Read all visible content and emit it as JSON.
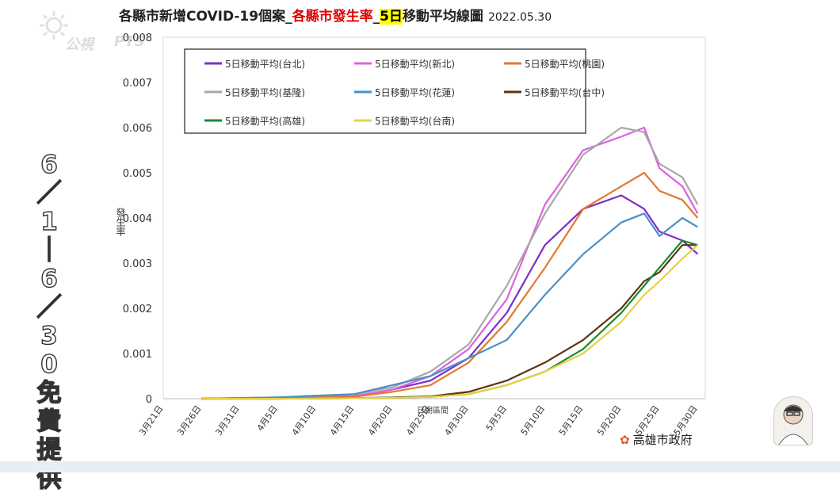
{
  "title": {
    "part1": "各縣市新增COVID-19個案_",
    "part2": "各縣市發生率",
    "part3": "_",
    "part4": "5日",
    "part5": "移動平均線圖",
    "date": "2022.05.30"
  },
  "side_caption": [
    "6",
    "／",
    "1",
    "｜",
    "6",
    "／",
    "3",
    "0",
    "免",
    "費",
    "提",
    "供"
  ],
  "watermark": {
    "brand": "公視",
    "channel": "PTS"
  },
  "source_label": "高雄市政府",
  "colors": {
    "台北": "#7a2fc7",
    "新北": "#e060e0",
    "桃園": "#e07a30",
    "基隆": "#a8a8a8",
    "花蓮": "#4a90c8",
    "台中": "#5c3510",
    "高雄": "#1a8a2a",
    "台南": "#e8d040"
  },
  "chart_data": {
    "type": "line",
    "title": "各縣市新增COVID-19個案_各縣市發生率_5日移動平均線圖 2022.05.30",
    "xlabel": "日期區間",
    "ylabel": "發生率",
    "ylim": [
      0,
      0.008
    ],
    "yticks": [
      "0",
      "0.001",
      "0.002",
      "0.003",
      "0.004",
      "0.005",
      "0.006",
      "0.007",
      "0.008"
    ],
    "xticks": [
      "3月21日",
      "3月26日",
      "3月31日",
      "4月5日",
      "4月10日",
      "4月15日",
      "4月20日",
      "4月25日",
      "4月30日",
      "5月5日",
      "5月10日",
      "5月15日",
      "5月20日",
      "5月25日",
      "5月30日"
    ],
    "x": [
      "3/26",
      "4/5",
      "4/15",
      "4/20",
      "4/25",
      "4/30",
      "5/5",
      "5/10",
      "5/15",
      "5/20",
      "5/23",
      "5/25",
      "5/28",
      "5/30"
    ],
    "legend_position": "top",
    "grid": false,
    "series": [
      {
        "name": "5日移動平均(台北)",
        "key": "台北",
        "values": [
          0,
          2e-05,
          5e-05,
          0.0002,
          0.0004,
          0.0009,
          0.0019,
          0.0034,
          0.0042,
          0.0045,
          0.0042,
          0.0037,
          0.0035,
          0.0032
        ]
      },
      {
        "name": "5日移動平均(新北)",
        "key": "新北",
        "values": [
          0,
          2e-05,
          6e-05,
          0.0002,
          0.0005,
          0.0011,
          0.0022,
          0.0043,
          0.0055,
          0.0058,
          0.006,
          0.0051,
          0.0047,
          0.0041
        ]
      },
      {
        "name": "5日移動平均(桃園)",
        "key": "桃園",
        "values": [
          0,
          2e-05,
          4e-05,
          0.00015,
          0.0003,
          0.0008,
          0.0017,
          0.0029,
          0.0042,
          0.0047,
          0.005,
          0.0046,
          0.0044,
          0.004
        ]
      },
      {
        "name": "5日移動平均(基隆)",
        "key": "基隆",
        "values": [
          0,
          3e-05,
          0.0001,
          0.00025,
          0.0006,
          0.0012,
          0.0025,
          0.0041,
          0.0054,
          0.006,
          0.0059,
          0.0052,
          0.0049,
          0.0043
        ]
      },
      {
        "name": "5日移動平均(花蓮)",
        "key": "花蓮",
        "values": [
          0,
          3e-05,
          0.0001,
          0.0003,
          0.0005,
          0.0009,
          0.0013,
          0.0023,
          0.0032,
          0.0039,
          0.0041,
          0.0036,
          0.004,
          0.0038
        ]
      },
      {
        "name": "5日移動平均(台中)",
        "key": "台中",
        "values": [
          0,
          0,
          1e-05,
          3e-05,
          5e-05,
          0.00015,
          0.0004,
          0.0008,
          0.0013,
          0.002,
          0.0026,
          0.0028,
          0.0034,
          0.0034
        ]
      },
      {
        "name": "5日移動平均(高雄)",
        "key": "高雄",
        "values": [
          0,
          0,
          1e-05,
          2e-05,
          4e-05,
          0.0001,
          0.0003,
          0.0006,
          0.0011,
          0.0019,
          0.0025,
          0.0029,
          0.0035,
          0.0034
        ]
      },
      {
        "name": "5日移動平均(台南)",
        "key": "台南",
        "values": [
          0,
          0,
          1e-05,
          2e-05,
          4e-05,
          0.0001,
          0.0003,
          0.0006,
          0.001,
          0.0017,
          0.0023,
          0.0026,
          0.0031,
          0.0034
        ]
      }
    ]
  }
}
